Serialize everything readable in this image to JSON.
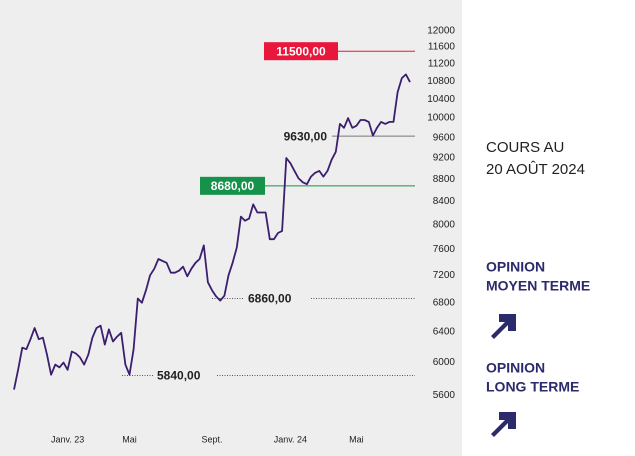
{
  "chart_data": {
    "type": "line",
    "log_scale": true,
    "color": "#3b1e6e",
    "values": [
      5670,
      5910,
      6190,
      6170,
      6300,
      6450,
      6300,
      6320,
      6100,
      5850,
      5975,
      5940,
      6000,
      5910,
      6140,
      6115,
      6065,
      5975,
      6100,
      6320,
      6450,
      6480,
      6230,
      6430,
      6270,
      6335,
      6385,
      5975,
      5850,
      6170,
      6860,
      6800,
      6980,
      7200,
      7300,
      7450,
      7420,
      7390,
      7240,
      7240,
      7270,
      7330,
      7185,
      7300,
      7390,
      7450,
      7665,
      7095,
      6980,
      6890,
      6830,
      6900,
      7200,
      7390,
      7630,
      8140,
      8070,
      8105,
      8350,
      8210,
      8210,
      8210,
      7765,
      7765,
      7865,
      7900,
      9200,
      9100,
      8955,
      8815,
      8745,
      8710,
      8850,
      8920,
      8955,
      8850,
      8955,
      9165,
      9320,
      9880,
      9800,
      10000,
      9800,
      9840,
      9960,
      9960,
      9920,
      9640,
      9800,
      9920,
      9880,
      9920,
      9920,
      10555,
      10870,
      10955,
      10780
    ],
    "xlim": [
      0,
      96
    ],
    "xticks": [
      {
        "value": 13,
        "label": "Janv. 23"
      },
      {
        "value": 28,
        "label": "Mai"
      },
      {
        "value": 48,
        "label": "Sept."
      },
      {
        "value": 67,
        "label": "Janv. 24"
      },
      {
        "value": 83,
        "label": "Mai"
      }
    ],
    "ylim": [
      5400,
      12300
    ],
    "yticks": [
      12000,
      11600,
      11200,
      10800,
      10400,
      10000,
      9600,
      9200,
      8800,
      8400,
      8000,
      7600,
      7200,
      6800,
      6400,
      6000,
      5600
    ],
    "levels": [
      {
        "value": 11500,
        "label": "11500,00",
        "color": "#e8173b"
      },
      {
        "value": 9630,
        "label": "9630,00",
        "color": "#777777"
      },
      {
        "value": 8680,
        "label": "8680,00",
        "color": "#16924a"
      },
      {
        "value": 6860,
        "label": "6860,00",
        "color": "#555555"
      },
      {
        "value": 5840,
        "label": "5840,00",
        "color": "#555555"
      }
    ]
  },
  "side_panel": {
    "date_line1": "COURS AU",
    "date_line2": "20 AOÛT 2024",
    "opinions": [
      {
        "line1": "OPINION",
        "line2": "MOYEN TERME"
      },
      {
        "line1": "OPINION",
        "line2": "LONG TERME"
      }
    ]
  }
}
